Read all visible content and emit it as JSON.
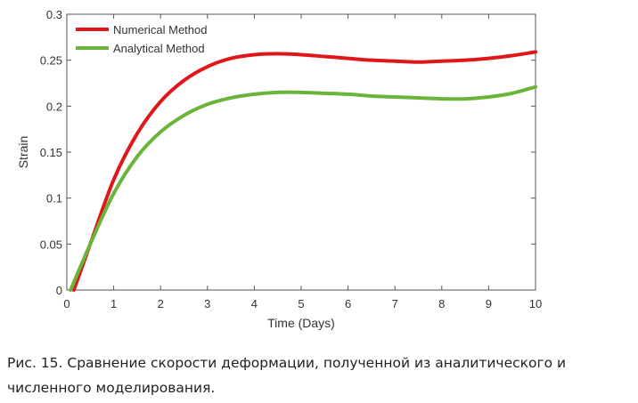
{
  "chart_data": {
    "type": "line",
    "title": "",
    "xlabel": "Time (Days)",
    "ylabel": "Strain",
    "xlim": [
      0,
      10
    ],
    "ylim": [
      0,
      0.3
    ],
    "xticks": [
      "0",
      "1",
      "2",
      "3",
      "4",
      "5",
      "6",
      "7",
      "8",
      "9",
      "10"
    ],
    "yticks": [
      "0",
      "0.05",
      "0.1",
      "0.15",
      "0.2",
      "0.25",
      "0.3"
    ],
    "grid": false,
    "legend_position": "top-left",
    "series": [
      {
        "name": "Numerical Method",
        "color": "#e0161b",
        "x": [
          0.15,
          0.5,
          1,
          1.5,
          2,
          2.5,
          3,
          3.5,
          4,
          4.5,
          5,
          5.5,
          6,
          6.5,
          7,
          7.5,
          8,
          8.5,
          9,
          9.5,
          10
        ],
        "y": [
          0,
          0.05,
          0.12,
          0.17,
          0.205,
          0.228,
          0.243,
          0.252,
          0.256,
          0.257,
          0.256,
          0.254,
          0.252,
          0.25,
          0.249,
          0.248,
          0.249,
          0.25,
          0.252,
          0.255,
          0.259
        ]
      },
      {
        "name": "Analytical Method",
        "color": "#6ab43a",
        "x": [
          0.08,
          0.5,
          1,
          1.5,
          2,
          2.5,
          3,
          3.5,
          4,
          4.5,
          5,
          5.5,
          6,
          6.5,
          7,
          7.5,
          8,
          8.5,
          9,
          9.5,
          10
        ],
        "y": [
          0,
          0.05,
          0.105,
          0.145,
          0.172,
          0.19,
          0.202,
          0.209,
          0.213,
          0.215,
          0.215,
          0.214,
          0.213,
          0.211,
          0.21,
          0.209,
          0.208,
          0.208,
          0.21,
          0.214,
          0.221
        ]
      }
    ]
  },
  "caption": "Рис. 15. Сравнение скорости деформации, полученной из аналитического и численного моделирования."
}
